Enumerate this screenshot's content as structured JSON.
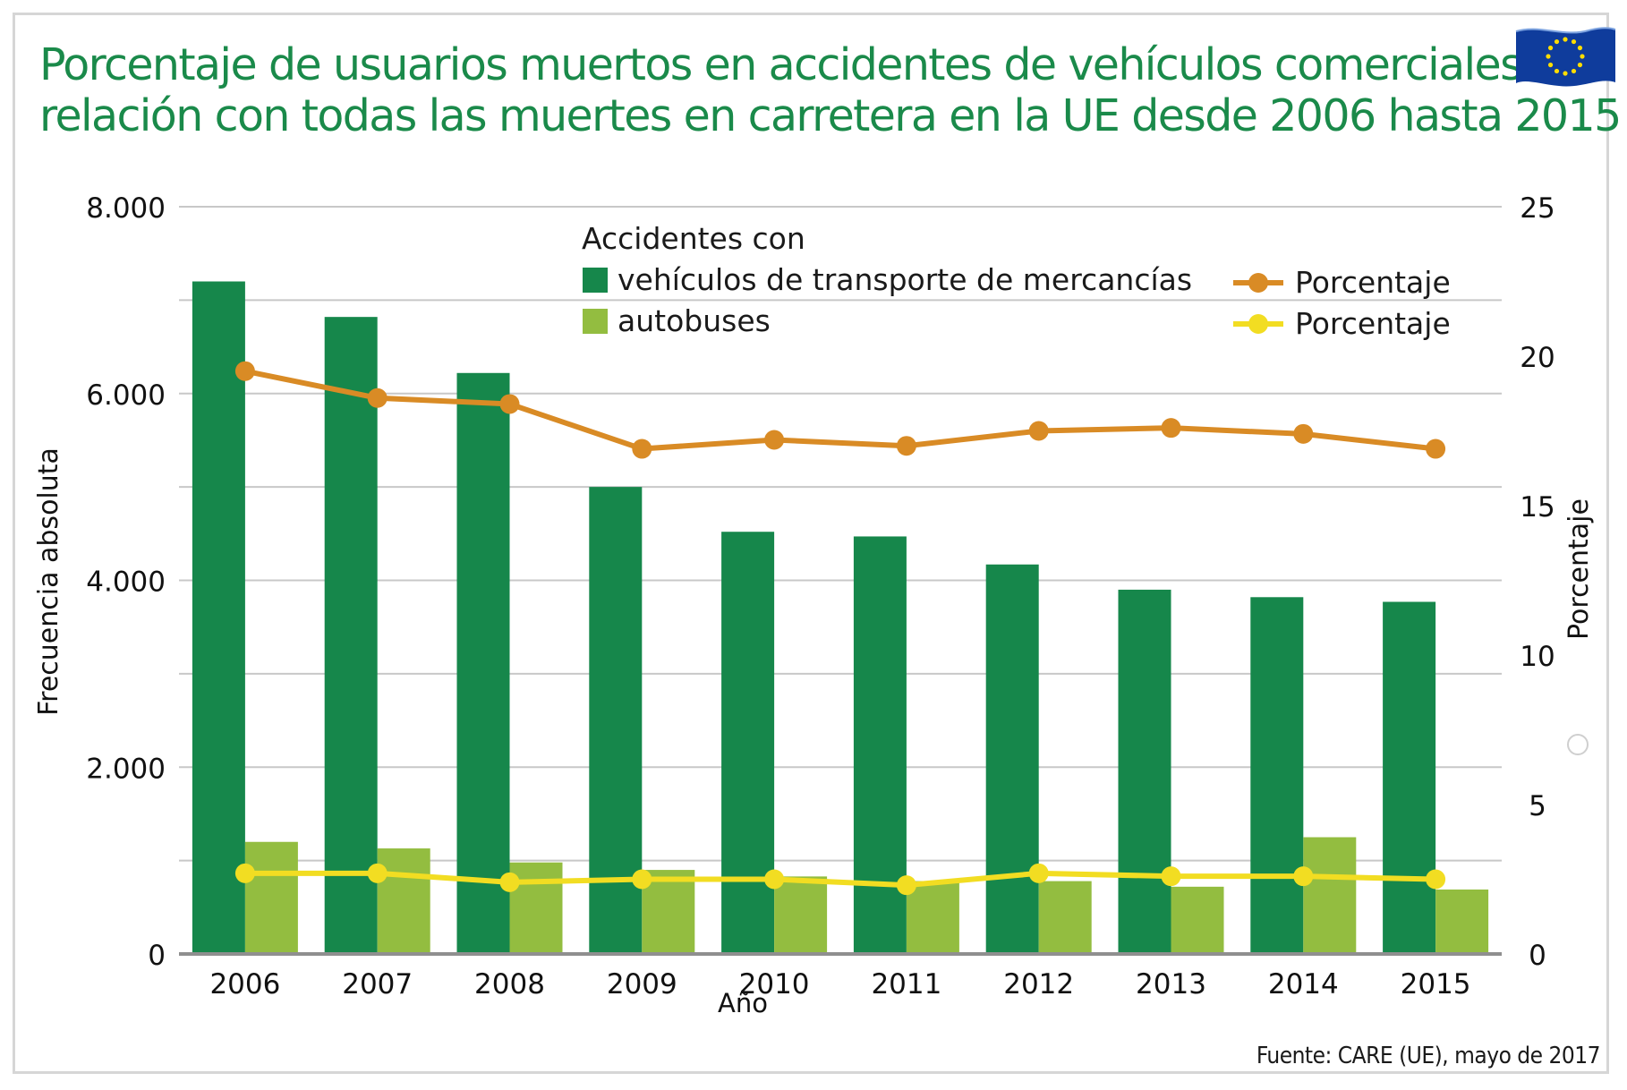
{
  "title": {
    "line1": "Porcentaje de usuarios muertos en accidentes de vehículos comerciales en",
    "line2": "relación con todas las muertes en carretera en la UE desde 2006 hasta 2015"
  },
  "source": "Fuente: CARE (UE), mayo de 2017",
  "colors": {
    "title": "#1a8a4a",
    "trucks_bar": "#16874b",
    "bus_bar": "#93bd40",
    "trucks_pct_line": "#d98b25",
    "bus_pct_line": "#f2dd22",
    "grid": "#c8c8c8"
  },
  "icons": {
    "flag": "eu-flag-icon",
    "circle": "hollow-circle-icon"
  },
  "chart_data": {
    "type": "bar",
    "categories": [
      "2006",
      "2007",
      "2008",
      "2009",
      "2010",
      "2011",
      "2012",
      "2013",
      "2014",
      "2015"
    ],
    "xlabel": "Año",
    "ylabel": "Frecuencia absoluta",
    "y2label": "Porcentaje",
    "ylim": [
      0,
      8000
    ],
    "y2lim": [
      0,
      25
    ],
    "yticks": [
      "0",
      "2.000",
      "4.000",
      "6.000",
      "8.000"
    ],
    "y2ticks": [
      "0",
      "5",
      "10",
      "15",
      "20",
      "25"
    ],
    "grid": true,
    "legend_title": "Accidentes con",
    "legend_placement": "top",
    "series": [
      {
        "name": "vehículos de transporte de mercancías",
        "type": "bar",
        "axis": "left",
        "values": [
          7200,
          6820,
          6220,
          5000,
          4520,
          4470,
          4170,
          3900,
          3820,
          3770
        ]
      },
      {
        "name": "autobuses",
        "type": "bar",
        "axis": "left",
        "values": [
          1200,
          1130,
          980,
          900,
          830,
          780,
          780,
          720,
          1250,
          690
        ]
      },
      {
        "name": "Porcentaje",
        "type": "line",
        "axis": "right",
        "related": "vehículos de transporte de mercancías",
        "values": [
          19.5,
          18.6,
          18.4,
          16.9,
          17.2,
          17.0,
          17.5,
          17.6,
          17.4,
          16.9
        ]
      },
      {
        "name": "Porcentaje",
        "type": "line",
        "axis": "right",
        "related": "autobuses",
        "values": [
          2.7,
          2.7,
          2.4,
          2.5,
          2.5,
          2.3,
          2.7,
          2.6,
          2.6,
          2.5
        ]
      }
    ]
  }
}
